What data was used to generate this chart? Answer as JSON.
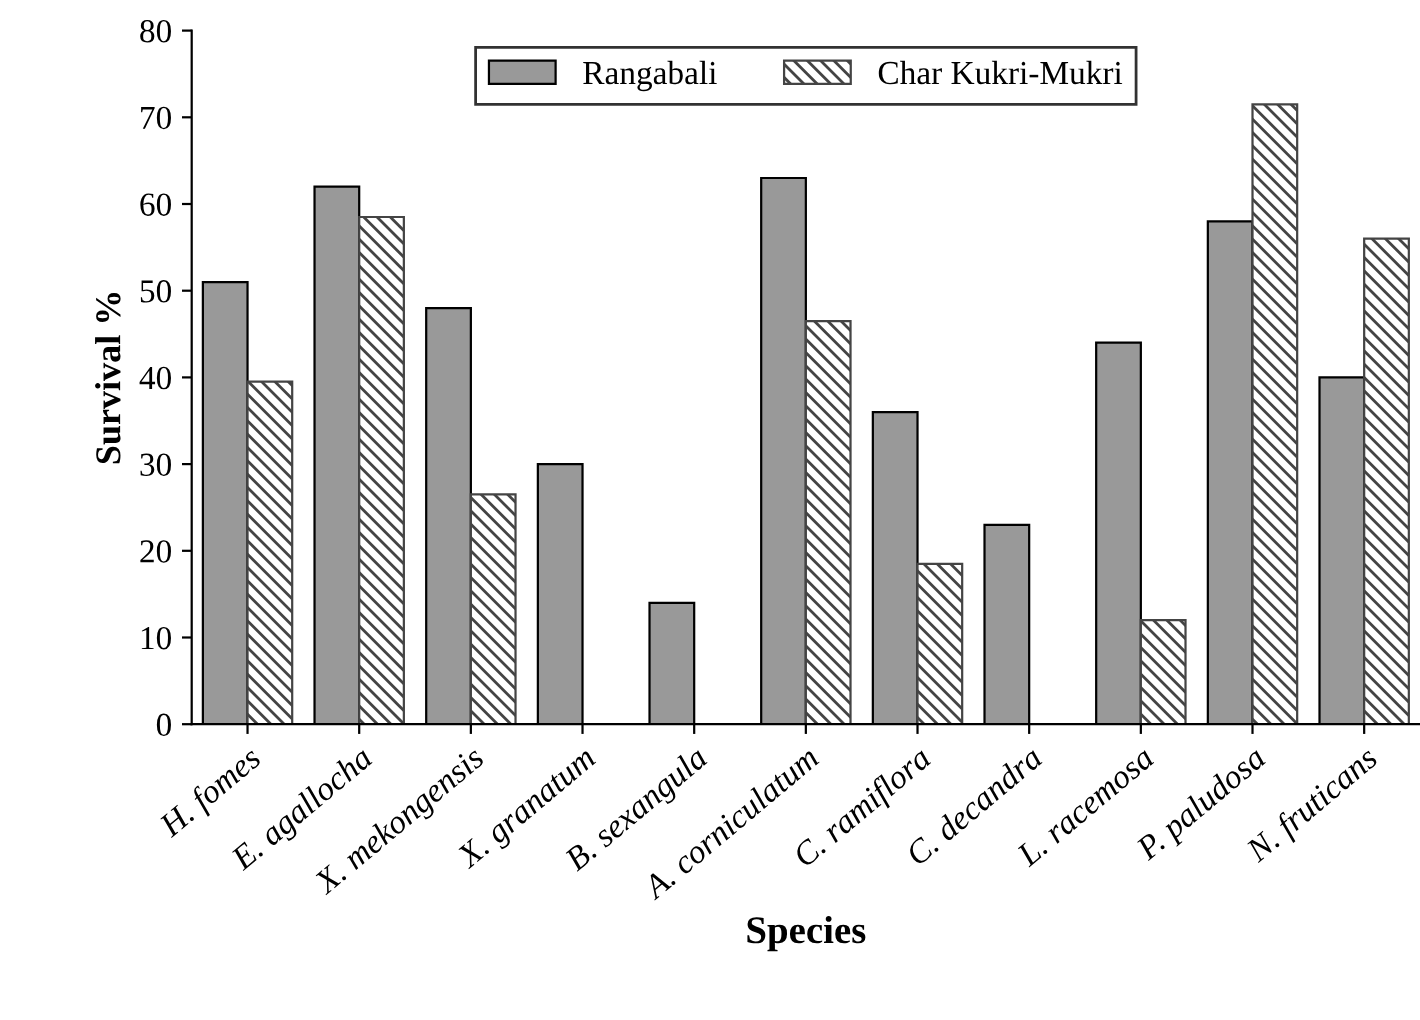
{
  "chart_data": {
    "type": "bar",
    "xlabel": "Species",
    "ylabel": "Survival %",
    "categories": [
      "H. fomes",
      "E. agallocha",
      "X. mekongensis",
      "X. granatum",
      "B. sexangula",
      "A. corniculatum",
      "C. ramiflora",
      "C. decandra",
      "L. racemosa",
      "P. paludosa",
      "N. fruticans"
    ],
    "series": [
      {
        "name": "Rangabali",
        "color": "#999999",
        "values": [
          51,
          62,
          48,
          30,
          14,
          63,
          36,
          23,
          44,
          58,
          40
        ]
      },
      {
        "name": "Char Kukri-Mukri",
        "color": "#444444",
        "values": [
          39.5,
          58.5,
          26.5,
          null,
          null,
          46.5,
          18.5,
          null,
          12,
          71.5,
          56
        ]
      }
    ],
    "ylim": [
      0,
      80
    ],
    "yticks": [
      0,
      10,
      20,
      30,
      40,
      50,
      60,
      70,
      80
    ],
    "grid": false,
    "legend": "top"
  }
}
